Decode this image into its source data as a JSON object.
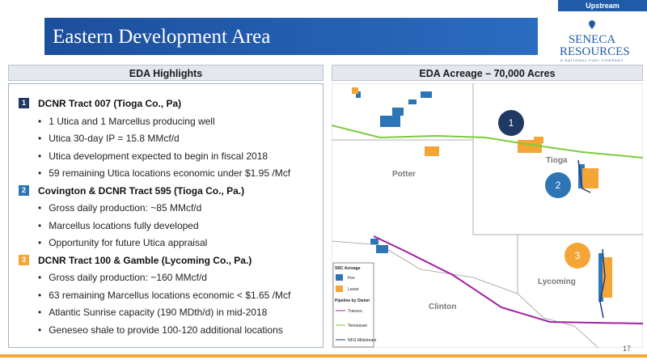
{
  "header": {
    "tag": "Upstream",
    "title": "Eastern Development Area",
    "logo": {
      "name": "SENECA RESOURCES",
      "tagline": "A NATIONAL FUEL COMPANY"
    }
  },
  "left_panel": {
    "heading": "EDA Highlights",
    "sections": [
      {
        "number": "1",
        "title": "DCNR Tract 007 (Tioga Co., Pa)",
        "bullets": [
          "1 Utica and 1 Marcellus producing well",
          "Utica 30-day IP = 15.8 MMcf/d",
          "Utica development expected to begin in fiscal 2018",
          "59 remaining Utica locations economic under $1.95 /Mcf"
        ]
      },
      {
        "number": "2",
        "title": "Covington & DCNR Tract 595 (Tioga Co., Pa.)",
        "bullets": [
          "Gross daily production: ~85 MMcf/d",
          "Marcellus locations fully developed",
          "Opportunity for future Utica appraisal"
        ]
      },
      {
        "number": "3",
        "title": "DCNR Tract 100 & Gamble (Lycoming Co., Pa.)",
        "bullets": [
          "Gross daily production: ~160 MMcf/d",
          "63 remaining Marcellus locations economic < $1.65 /Mcf",
          "Atlantic Sunrise capacity (190 MDth/d) in mid-2018",
          "Geneseo shale to provide 100-120 additional locations"
        ]
      }
    ]
  },
  "right_panel": {
    "heading": "EDA Acreage – 70,000 Acres",
    "map": {
      "counties": [
        "Potter",
        "Tioga",
        "Lycoming",
        "Clinton"
      ],
      "markers": [
        "1",
        "2",
        "3"
      ],
      "legend": {
        "acreage_title": "SRC Acreage",
        "acreage": [
          "Fee",
          "Lease"
        ],
        "pipeline_title": "Pipeline by Owner",
        "pipelines": [
          "Transco",
          "Tennessee",
          "NFG Midstream"
        ]
      }
    }
  },
  "footer": {
    "page_number": "17"
  }
}
